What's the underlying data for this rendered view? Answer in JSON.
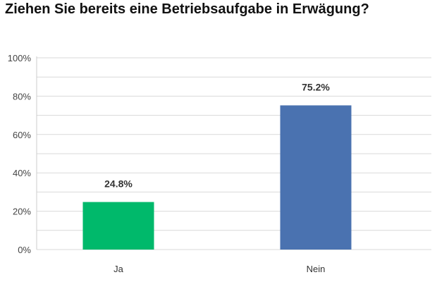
{
  "chart_data": {
    "type": "bar",
    "title": "Ziehen Sie bereits eine Betriebsaufgabe in Erwägung?",
    "categories": [
      "Ja",
      "Nein"
    ],
    "values": [
      24.8,
      75.2
    ],
    "data_labels": [
      "24.8%",
      "75.2%"
    ],
    "bar_colors": [
      "#00b96b",
      "#4a72b0"
    ],
    "ylim": [
      0,
      100
    ],
    "y_ticks": [
      0,
      20,
      40,
      60,
      80,
      100
    ],
    "y_tick_labels": [
      "0%",
      "20%",
      "40%",
      "60%",
      "80%",
      "100%"
    ],
    "grid": true,
    "grid_color": "#d9d9d9",
    "xlabel": "",
    "ylabel": ""
  }
}
